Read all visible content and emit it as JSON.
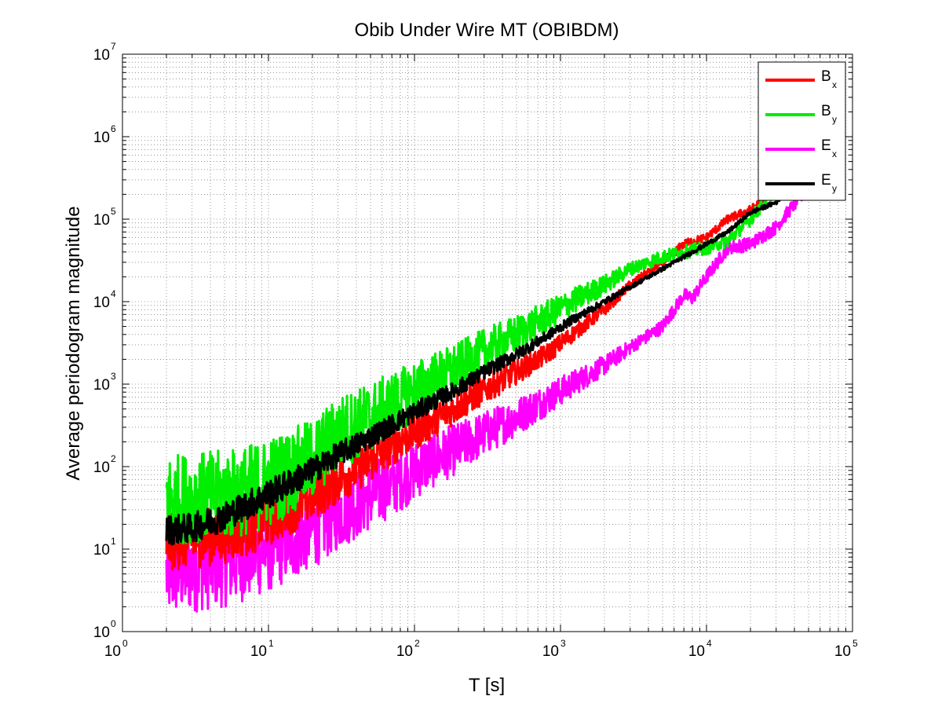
{
  "chart_data": {
    "type": "line",
    "title": "Obib Under Wire MT (OBIBDM)",
    "xlabel": "T [s]",
    "ylabel": "Average periodogram magnitude",
    "xscale": "log",
    "yscale": "log",
    "xlim": [
      1,
      100000
    ],
    "ylim": [
      1,
      10000000
    ],
    "grid": "on (major and minor, dotted)",
    "legend_position": "top-right",
    "x_ticks": [
      {
        "base": "10",
        "exp": "0"
      },
      {
        "base": "10",
        "exp": "1"
      },
      {
        "base": "10",
        "exp": "2"
      },
      {
        "base": "10",
        "exp": "3"
      },
      {
        "base": "10",
        "exp": "4"
      },
      {
        "base": "10",
        "exp": "5"
      }
    ],
    "y_ticks": [
      {
        "base": "10",
        "exp": "0"
      },
      {
        "base": "10",
        "exp": "1"
      },
      {
        "base": "10",
        "exp": "2"
      },
      {
        "base": "10",
        "exp": "3"
      },
      {
        "base": "10",
        "exp": "4"
      },
      {
        "base": "10",
        "exp": "5"
      },
      {
        "base": "10",
        "exp": "6"
      },
      {
        "base": "10",
        "exp": "7"
      }
    ],
    "series": [
      {
        "name": "Bx",
        "label_base": "B",
        "label_sub": "x",
        "color": "#ff0000",
        "x": [
          2,
          3,
          5,
          8,
          12,
          20,
          30,
          50,
          80,
          120,
          200,
          300,
          500,
          800,
          1200,
          2000,
          3000,
          5000,
          7000,
          10000,
          14000,
          20000,
          30000,
          50000,
          85000
        ],
        "y": [
          12,
          13,
          15,
          20,
          28,
          45,
          70,
          120,
          210,
          320,
          550,
          850,
          1400,
          2300,
          4000,
          8000,
          16000,
          30000,
          50000,
          60000,
          100000,
          130000,
          220000,
          300000,
          850000
        ],
        "noise": 0.35
      },
      {
        "name": "By",
        "label_base": "B",
        "label_sub": "y",
        "color": "#00ee00",
        "x": [
          2,
          3,
          5,
          8,
          12,
          20,
          30,
          50,
          80,
          120,
          200,
          300,
          500,
          800,
          1200,
          2000,
          3000,
          5000,
          7000,
          10000,
          14000,
          20000,
          30000,
          50000,
          85000
        ],
        "y": [
          40,
          42,
          45,
          55,
          75,
          120,
          250,
          400,
          650,
          1000,
          1600,
          2500,
          4000,
          6500,
          10000,
          16000,
          25000,
          35000,
          40000,
          45000,
          55000,
          100000,
          240000,
          300000,
          380000
        ],
        "noise": 0.55
      },
      {
        "name": "Ex",
        "label_base": "E",
        "label_sub": "x",
        "color": "#ff00ff",
        "x": [
          2,
          3,
          5,
          8,
          12,
          20,
          30,
          50,
          80,
          120,
          200,
          300,
          500,
          800,
          1200,
          2000,
          3000,
          5000,
          7000,
          8000,
          10000,
          14000,
          20000,
          30000,
          50000,
          85000
        ],
        "y": [
          5,
          6,
          7,
          9,
          12,
          18,
          28,
          45,
          70,
          110,
          170,
          250,
          400,
          650,
          1000,
          1700,
          2800,
          5000,
          12000,
          11000,
          20000,
          45000,
          50000,
          80000,
          250000,
          800000
        ],
        "noise": 0.55
      },
      {
        "name": "Ey",
        "label_base": "E",
        "label_sub": "y",
        "color": "#000000",
        "x": [
          2,
          3,
          5,
          8,
          12,
          20,
          30,
          50,
          80,
          120,
          200,
          300,
          500,
          800,
          1200,
          2000,
          3000,
          5000,
          7000,
          10000,
          14000,
          20000,
          30000,
          50000,
          85000
        ],
        "y": [
          17,
          18,
          25,
          38,
          55,
          90,
          140,
          230,
          370,
          550,
          900,
          1400,
          2300,
          3800,
          6000,
          10000,
          15000,
          25000,
          35000,
          50000,
          70000,
          120000,
          160000,
          400000,
          1000000
        ],
        "noise": 0.18
      }
    ]
  }
}
